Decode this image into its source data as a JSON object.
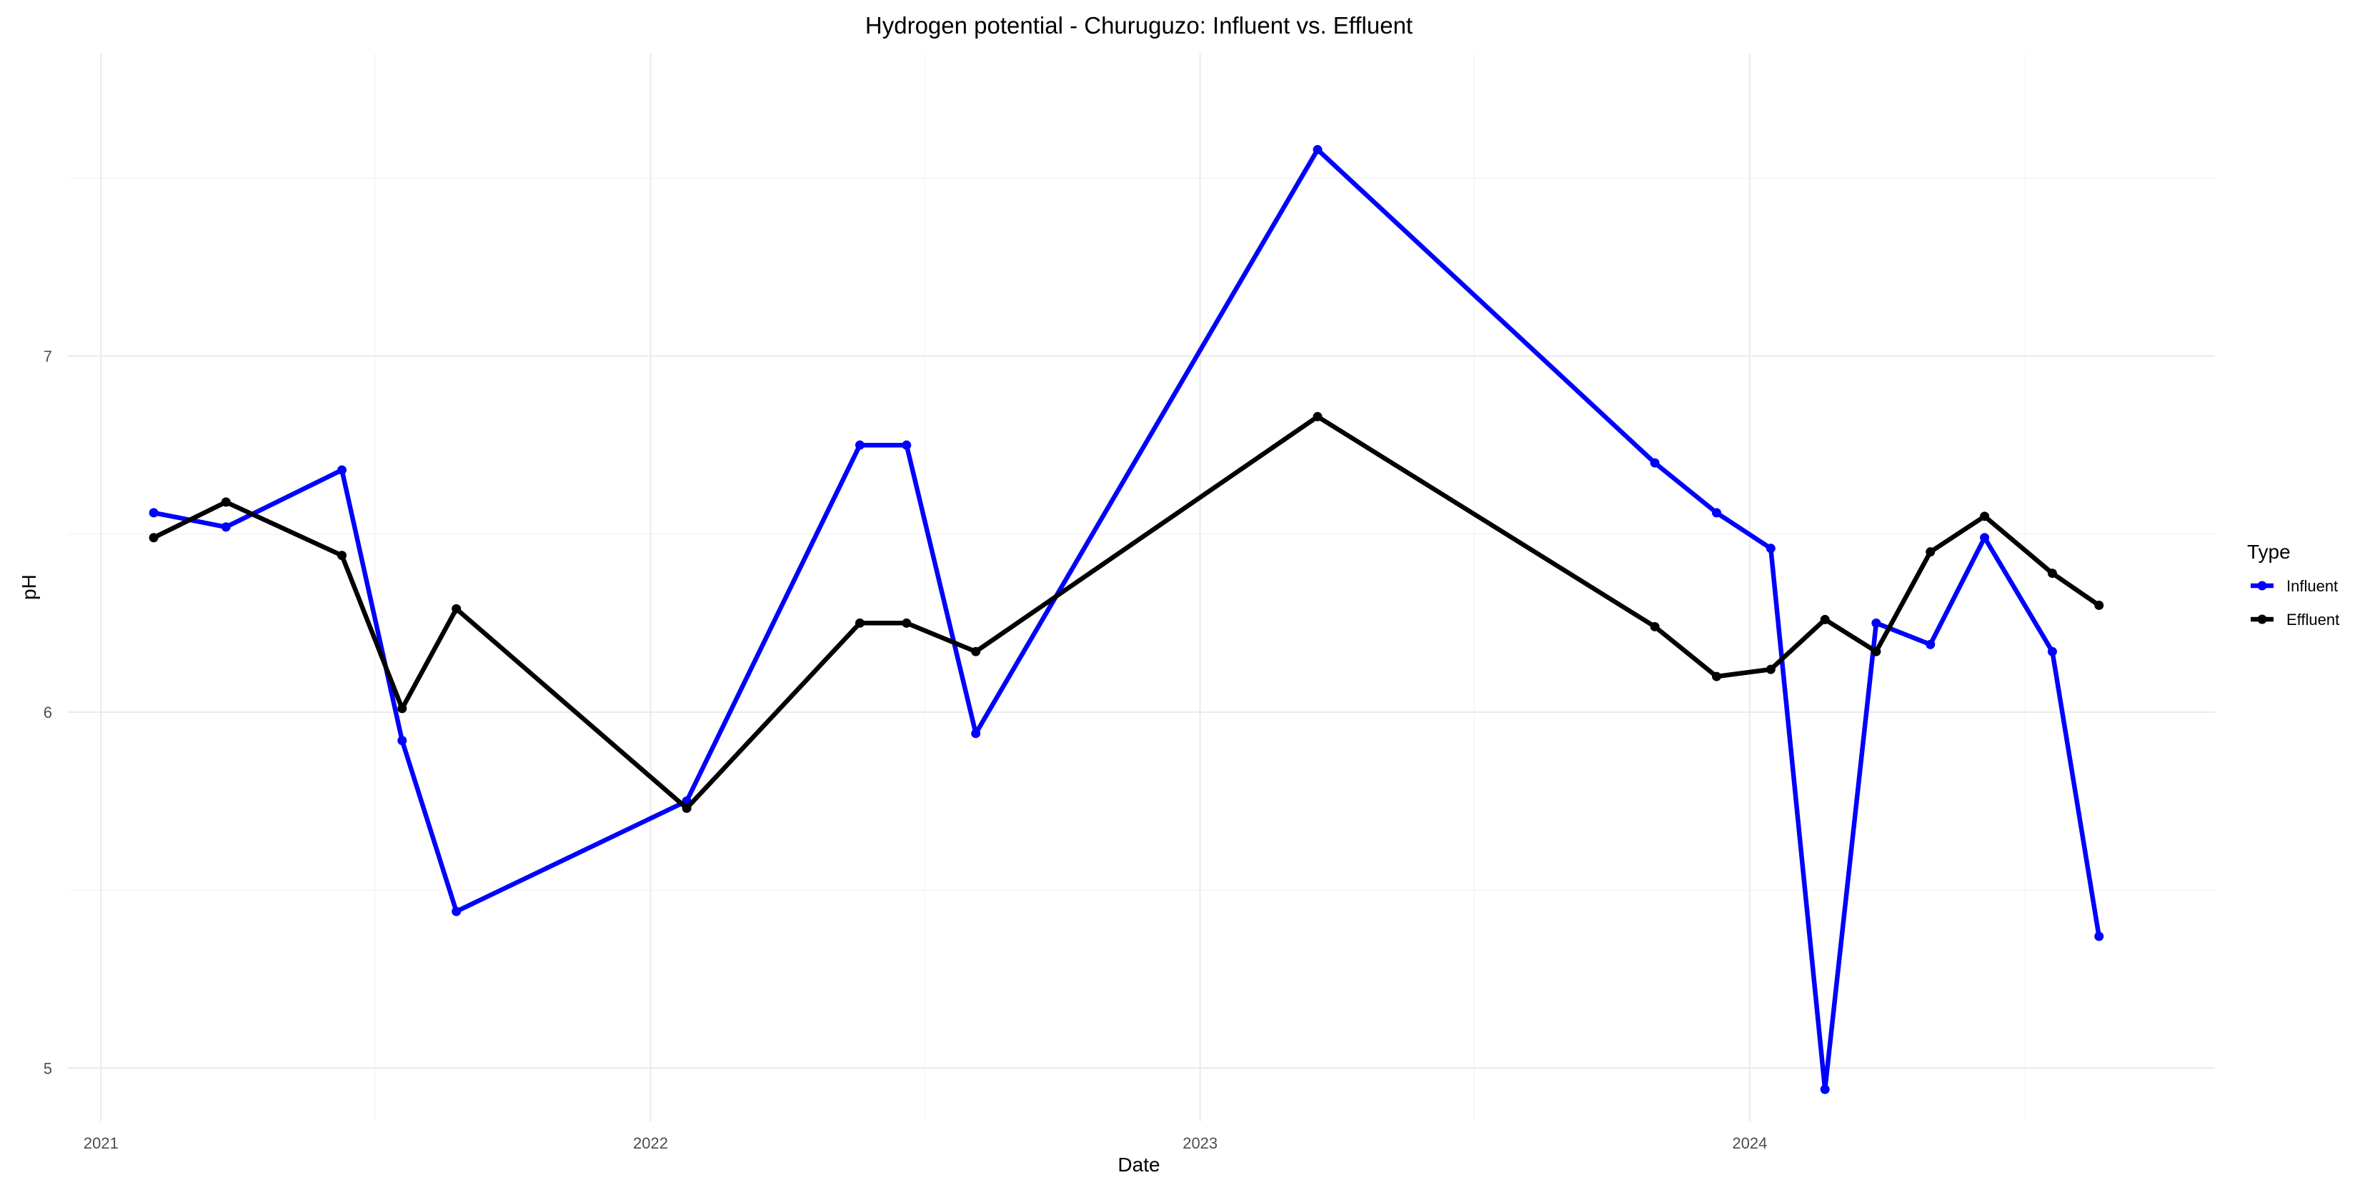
{
  "chart_data": {
    "type": "line",
    "title": "Hydrogen potential - Churuguzo: Influent vs. Effluent",
    "xlabel": "Date",
    "ylabel": "pH",
    "x_axis_type": "date",
    "xlim": [
      "2020-12-10",
      "2024-11-05"
    ],
    "ylim": [
      4.85,
      7.85
    ],
    "x_ticks": [
      "2021",
      "2022",
      "2023",
      "2024"
    ],
    "x_tick_dates": [
      "2021-01-01",
      "2022-01-01",
      "2023-01-01",
      "2024-01-01"
    ],
    "x_minor_dates": [
      "2021-07-02",
      "2022-07-02",
      "2023-07-02",
      "2024-07-02"
    ],
    "y_ticks": [
      5,
      6,
      7
    ],
    "y_minor_ticks": [
      5.5,
      6.5,
      7.5
    ],
    "grid": true,
    "legend": {
      "title": "Type",
      "position": "right"
    },
    "series": [
      {
        "name": "Influent",
        "color": "#0000ff",
        "points": [
          {
            "x": "2021-02-05",
            "y": 6.56
          },
          {
            "x": "2021-03-25",
            "y": 6.52
          },
          {
            "x": "2021-06-10",
            "y": 6.68
          },
          {
            "x": "2021-07-20",
            "y": 5.92
          },
          {
            "x": "2021-08-25",
            "y": 5.44
          },
          {
            "x": "2022-01-25",
            "y": 5.75
          },
          {
            "x": "2022-05-20",
            "y": 6.75
          },
          {
            "x": "2022-06-20",
            "y": 6.75
          },
          {
            "x": "2022-08-05",
            "y": 5.94
          },
          {
            "x": "2023-03-20",
            "y": 7.58
          },
          {
            "x": "2023-10-30",
            "y": 6.7
          },
          {
            "x": "2023-12-10",
            "y": 6.56
          },
          {
            "x": "2024-01-15",
            "y": 6.46
          },
          {
            "x": "2024-02-20",
            "y": 4.94
          },
          {
            "x": "2024-03-25",
            "y": 6.25
          },
          {
            "x": "2024-04-30",
            "y": 6.19
          },
          {
            "x": "2024-06-05",
            "y": 6.49
          },
          {
            "x": "2024-07-20",
            "y": 6.17
          },
          {
            "x": "2024-08-20",
            "y": 5.37
          }
        ]
      },
      {
        "name": "Effluent",
        "color": "#000000",
        "points": [
          {
            "x": "2021-02-05",
            "y": 6.49
          },
          {
            "x": "2021-03-25",
            "y": 6.59
          },
          {
            "x": "2021-06-10",
            "y": 6.44
          },
          {
            "x": "2021-07-20",
            "y": 6.01
          },
          {
            "x": "2021-08-25",
            "y": 6.29
          },
          {
            "x": "2022-01-25",
            "y": 5.73
          },
          {
            "x": "2022-05-20",
            "y": 6.25
          },
          {
            "x": "2022-06-20",
            "y": 6.25
          },
          {
            "x": "2022-08-05",
            "y": 6.17
          },
          {
            "x": "2023-03-20",
            "y": 6.83
          },
          {
            "x": "2023-10-30",
            "y": 6.24
          },
          {
            "x": "2023-12-10",
            "y": 6.1
          },
          {
            "x": "2024-01-15",
            "y": 6.12
          },
          {
            "x": "2024-02-20",
            "y": 6.26
          },
          {
            "x": "2024-03-25",
            "y": 6.17
          },
          {
            "x": "2024-04-30",
            "y": 6.45
          },
          {
            "x": "2024-06-05",
            "y": 6.55
          },
          {
            "x": "2024-07-20",
            "y": 6.39
          },
          {
            "x": "2024-08-20",
            "y": 6.3
          }
        ]
      }
    ]
  }
}
